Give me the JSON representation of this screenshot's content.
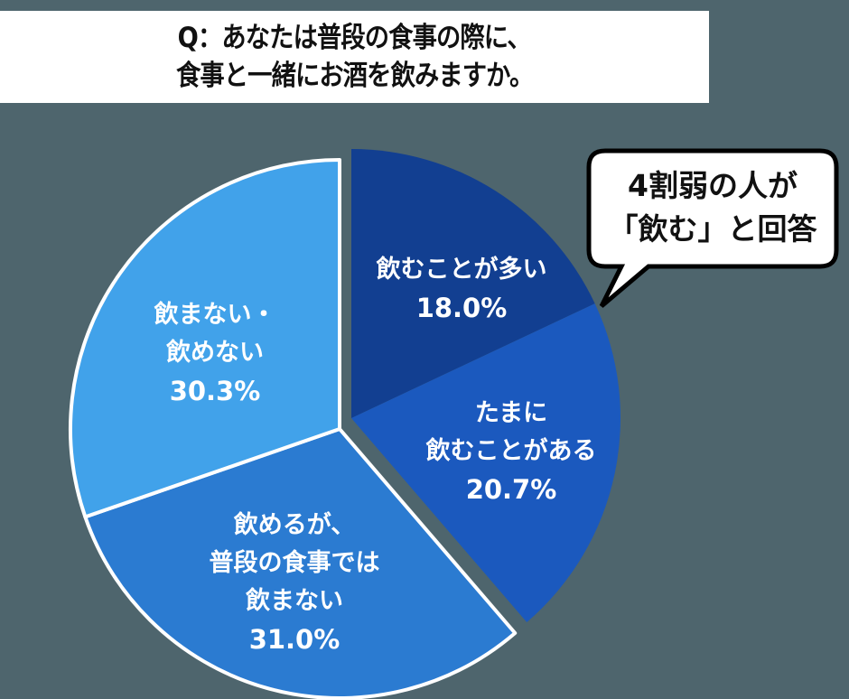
{
  "title": {
    "line1": "Q：あなたは普段の食事の際に、",
    "line2": "食事と一緒にお酒を飲みますか。"
  },
  "callout": {
    "line1": "4割弱の人が",
    "line2": "「飲む」と回答"
  },
  "labels": {
    "often": {
      "line1": "飲むことが多い",
      "pct": "18.0%"
    },
    "sometimes": {
      "line1": "たまに",
      "line2": "飲むことがある",
      "pct": "20.7%"
    },
    "not_usual": {
      "line1": "飲めるが、",
      "line2": "普段の食事では",
      "line3": "飲まない",
      "pct": "31.0%"
    },
    "never": {
      "line1": "飲まない・",
      "line2": "飲めない",
      "pct": "30.3%"
    }
  },
  "colors": {
    "background": "#4e656d",
    "often": "#123f91",
    "sometimes": "#1b59be",
    "not_usual": "#2b7bd1",
    "never": "#41a2ea"
  },
  "chart_data": {
    "type": "pie",
    "title": "Q：あなたは普段の食事の際に、食事と一緒にお酒を飲みますか。",
    "categories": [
      "飲むことが多い",
      "たまに飲むことがある",
      "飲めるが、普段の食事では飲まない",
      "飲まない・飲めない"
    ],
    "values": [
      18.0,
      20.7,
      31.0,
      30.3
    ],
    "unit": "%",
    "exploded": [
      "飲むことが多い",
      "たまに飲むことがある"
    ],
    "start_angle_deg": 0,
    "direction": "clockwise",
    "annotation": "4割弱の人が「飲む」と回答"
  }
}
